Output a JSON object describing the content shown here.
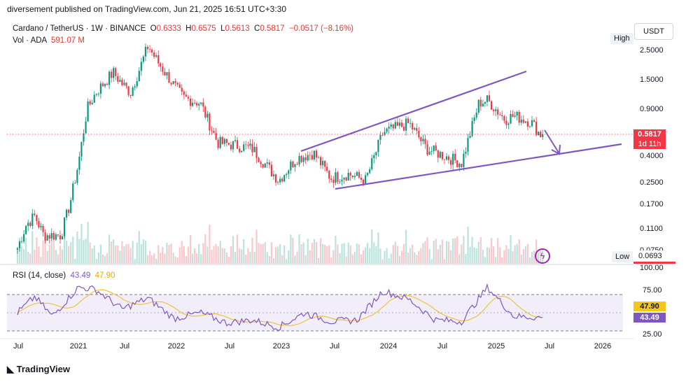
{
  "header": {
    "published": "diversement published on TradingView.com, Jun 21, 2025 16:51 UTC+3:30"
  },
  "legend": {
    "symbol": "Cardano / TetherUS · 1W · BINANCE",
    "o_label": "O",
    "o": "0.6333",
    "h_label": "H",
    "h": "0.6575",
    "l_label": "L",
    "l": "0.5613",
    "c_label": "C",
    "c": "0.5817",
    "change": "−0.0517 (−8.16%)",
    "vol_label": "Vol · ADA",
    "vol": "591.07 M"
  },
  "rsi_legend": {
    "label": "RSI (14, close)",
    "rsi": "43.49",
    "ma": "47.90"
  },
  "price_axis": {
    "unit": "USDT",
    "high_label": "High",
    "low_label": "Low",
    "low_value": "0.0693",
    "last_price": "0.5817",
    "countdown": "1d 11h"
  },
  "brand": "TradingView",
  "colors": {
    "up": "#089981",
    "down": "#f23645",
    "pattern": "#7e57c2",
    "rsi": "#7e57c2",
    "rsi_ma": "#f0c040"
  },
  "chart_data": [
    {
      "type": "candlestick",
      "title": "Cardano / TetherUS",
      "timeframe": "1W",
      "exchange": "BINANCE",
      "y_scale": "log",
      "y_ticks": [
        2.5,
        1.5,
        0.9,
        0.4,
        0.25,
        0.17,
        0.11,
        0.075
      ],
      "y_tick_labels": [
        "2.5000",
        "1.5000",
        "0.9000",
        "0.4000",
        "0.2500",
        "0.1700",
        "0.1100",
        "0.0750"
      ],
      "x_ticks": [
        "Jul",
        "2021",
        "Jul",
        "2022",
        "Jul",
        "2023",
        "Jul",
        "2024",
        "Jul",
        "2025",
        "Jul",
        "2026"
      ],
      "approx_close_path": [
        [
          "2020-06",
          0.08
        ],
        [
          "2020-07",
          0.12
        ],
        [
          "2020-08",
          0.14
        ],
        [
          "2020-09",
          0.1
        ],
        [
          "2020-11",
          0.1
        ],
        [
          "2020-12",
          0.17
        ],
        [
          "2021-01",
          0.35
        ],
        [
          "2021-02",
          0.9
        ],
        [
          "2021-03",
          1.2
        ],
        [
          "2021-05",
          1.7
        ],
        [
          "2021-06",
          1.4
        ],
        [
          "2021-07",
          1.2
        ],
        [
          "2021-09",
          2.7
        ],
        [
          "2021-10",
          2.1
        ],
        [
          "2021-12",
          1.35
        ],
        [
          "2022-01",
          1.1
        ],
        [
          "2022-03",
          1.0
        ],
        [
          "2022-05",
          0.5
        ],
        [
          "2022-07",
          0.48
        ],
        [
          "2022-09",
          0.45
        ],
        [
          "2022-12",
          0.26
        ],
        [
          "2023-02",
          0.38
        ],
        [
          "2023-04",
          0.42
        ],
        [
          "2023-06",
          0.27
        ],
        [
          "2023-08",
          0.29
        ],
        [
          "2023-10",
          0.26
        ],
        [
          "2023-12",
          0.6
        ],
        [
          "2024-03",
          0.7
        ],
        [
          "2024-05",
          0.45
        ],
        [
          "2024-07",
          0.4
        ],
        [
          "2024-09",
          0.35
        ],
        [
          "2024-11",
          1.0
        ],
        [
          "2024-12",
          1.05
        ],
        [
          "2025-02",
          0.75
        ],
        [
          "2025-03",
          0.8
        ],
        [
          "2025-05",
          0.72
        ],
        [
          "2025-06",
          0.58
        ]
      ],
      "high": 3.1,
      "low": 0.0693,
      "last": 0.5817
    },
    {
      "type": "line",
      "title": "RSI (14, close)",
      "y_ticks": [
        100,
        75,
        25
      ],
      "y_tick_labels": [
        "100.00",
        "75.00",
        "25.00"
      ],
      "band": [
        30,
        70
      ],
      "series": [
        {
          "name": "RSI",
          "last": 43.49
        },
        {
          "name": "RSI-based MA",
          "last": 47.9
        }
      ],
      "approx_rsi_path": [
        [
          "2020-06",
          50
        ],
        [
          "2020-08",
          72
        ],
        [
          "2020-10",
          45
        ],
        [
          "2021-01",
          85
        ],
        [
          "2021-03",
          82
        ],
        [
          "2021-06",
          55
        ],
        [
          "2021-09",
          70
        ],
        [
          "2021-12",
          42
        ],
        [
          "2022-03",
          50
        ],
        [
          "2022-06",
          36
        ],
        [
          "2022-09",
          40
        ],
        [
          "2022-12",
          30
        ],
        [
          "2023-03",
          50
        ],
        [
          "2023-06",
          38
        ],
        [
          "2023-09",
          40
        ],
        [
          "2023-12",
          80
        ],
        [
          "2024-03",
          68
        ],
        [
          "2024-06",
          40
        ],
        [
          "2024-09",
          38
        ],
        [
          "2024-12",
          85
        ],
        [
          "2025-03",
          45
        ],
        [
          "2025-06",
          43.49
        ]
      ]
    }
  ]
}
